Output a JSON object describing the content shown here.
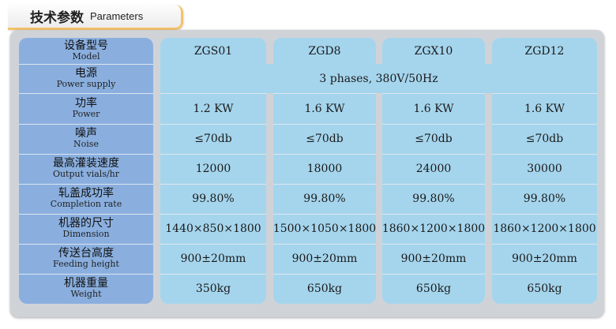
{
  "header": {
    "title_zh": "技术参数",
    "title_en": "Parameters"
  },
  "models": [
    "ZGS01",
    "ZGD8",
    "ZGX10",
    "ZGD12"
  ],
  "rows": [
    {
      "zh": "设备型号",
      "en": "Model"
    },
    {
      "zh": "电源",
      "en": "Power supply",
      "merged": "3 phases, 380V/50Hz"
    },
    {
      "zh": "功率",
      "en": "Power",
      "values": [
        "1.2 KW",
        "1.6 KW",
        "1.6 KW",
        "1.6 KW"
      ]
    },
    {
      "zh": "噪声",
      "en": "Noise",
      "values": [
        "≤70db",
        "≤70db",
        "≤70db",
        "≤70db"
      ]
    },
    {
      "zh": "最高灌装速度",
      "en": "Output vials/hr",
      "values": [
        "12000",
        "18000",
        "24000",
        "30000"
      ]
    },
    {
      "zh": "轧盖成功率",
      "en": "Completion rate",
      "values": [
        "99.80%",
        "99.80%",
        "99.80%",
        "99.80%"
      ]
    },
    {
      "zh": "机器的尺寸",
      "en": "Dimension",
      "values": [
        "1440×850×1800",
        "1500×1050×1800",
        "1860×1200×1800",
        "1860×1200×1800"
      ]
    },
    {
      "zh": "传送台高度",
      "en": "Feeding height",
      "values": [
        "900±20mm",
        "900±20mm",
        "900±20mm",
        "900±20mm"
      ]
    },
    {
      "zh": "机器重量",
      "en": "Weight",
      "values": [
        "350kg",
        "650kg",
        "650kg",
        "650kg"
      ]
    }
  ]
}
